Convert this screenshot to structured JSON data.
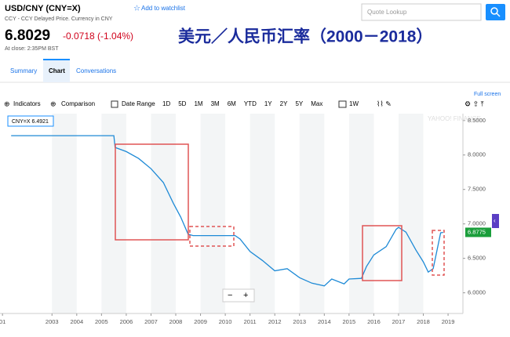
{
  "header": {
    "symbol": "USD/CNY (CNY=X)",
    "watchlist": "Add to watchlist",
    "search_placeholder": "Quote Lookup",
    "subtitle": "CCY - CCY Delayed Price. Currency in CNY",
    "price": "6.8029",
    "change": "-0.0718 (-1.04%)",
    "close_time": "At close: 2:35PM BST"
  },
  "overlay_title": "美元／人民币汇率（2000－2018）",
  "tabs": [
    "Summary",
    "Chart",
    "Conversations"
  ],
  "toolbar": {
    "indicators": "Indicators",
    "comparison": "Comparison",
    "date_range": "Date Range",
    "ranges": [
      "1D",
      "5D",
      "1M",
      "3M",
      "6M",
      "YTD",
      "1Y",
      "2Y",
      "5Y",
      "Max"
    ],
    "interval": "1W",
    "full_screen": "Full screen"
  },
  "chart_data": {
    "type": "line",
    "color": "#1e8ad6",
    "x": [
      2001.35,
      2004.0,
      2005.5,
      2005.55,
      2006.0,
      2006.5,
      2007.0,
      2007.5,
      2007.9,
      2008.2,
      2008.5,
      2008.7,
      2009.5,
      2010.4,
      2010.6,
      2011.0,
      2011.5,
      2012.0,
      2012.5,
      2013.0,
      2013.5,
      2014.0,
      2014.3,
      2014.8,
      2015.0,
      2015.5,
      2015.7,
      2016.0,
      2016.5,
      2016.9,
      2017.0,
      2017.3,
      2017.7,
      2018.0,
      2018.2,
      2018.4,
      2018.7,
      2018.8
    ],
    "values": [
      8.28,
      8.28,
      8.28,
      8.11,
      8.05,
      7.95,
      7.8,
      7.6,
      7.3,
      7.1,
      6.85,
      6.83,
      6.83,
      6.83,
      6.78,
      6.6,
      6.47,
      6.32,
      6.35,
      6.22,
      6.14,
      6.1,
      6.2,
      6.13,
      6.2,
      6.21,
      6.38,
      6.55,
      6.67,
      6.92,
      6.95,
      6.88,
      6.62,
      6.45,
      6.3,
      6.35,
      6.87,
      6.8775
    ],
    "xlim": [
      2000.9,
      2019.6
    ],
    "ylim": [
      5.7,
      8.6
    ],
    "xticks": [
      {
        "value": 2001,
        "label": "01"
      },
      2003,
      2004,
      2005,
      2006,
      2007,
      2008,
      2009,
      2010,
      2011,
      2012,
      2013,
      2014,
      2015,
      2016,
      2017,
      2018,
      2019
    ],
    "yticks": [
      {
        "value": 6,
        "label": "6.0000"
      },
      {
        "value": 6.5,
        "label": "6.5000"
      },
      {
        "value": 7,
        "label": "7.0000"
      },
      {
        "value": 7.5,
        "label": "7.5000"
      },
      {
        "value": 8,
        "label": "8.0000"
      },
      {
        "value": 8.5,
        "label": "8.5000"
      }
    ],
    "crosshair_label": "CNY=X 6.4921",
    "last_value_label": "6.8775",
    "watermark": "YAHOO! FINANCE"
  }
}
